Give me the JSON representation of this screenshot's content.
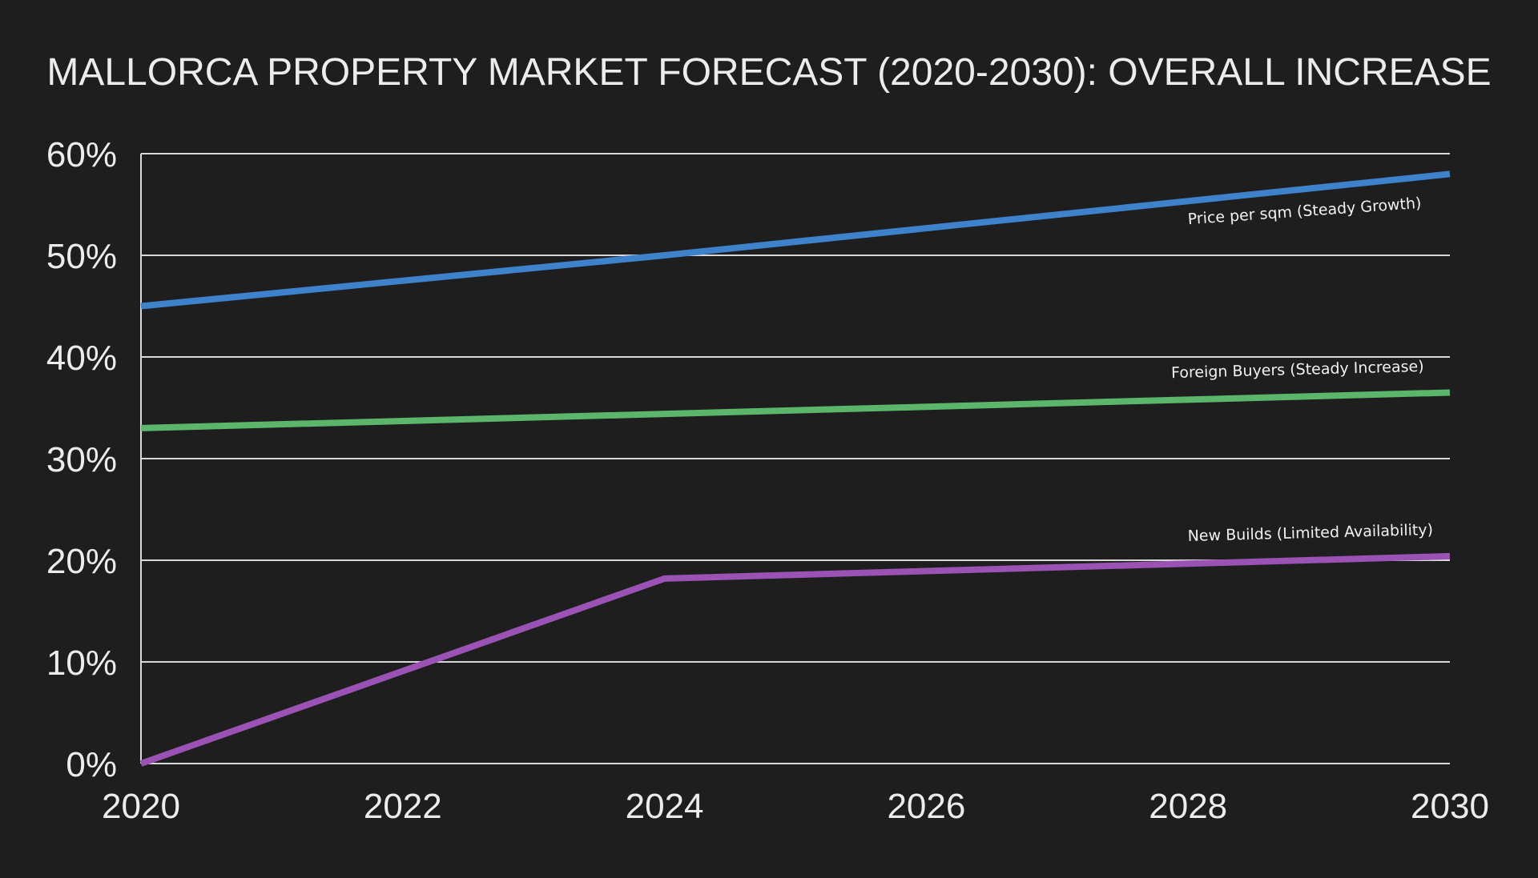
{
  "chart_data": {
    "type": "line",
    "title": "MALLORCA PROPERTY MARKET FORECAST (2020-2030): OVERALL INCREASE",
    "xlabel": "",
    "ylabel": "",
    "xlim": [
      2020,
      2030
    ],
    "ylim": [
      0,
      60
    ],
    "x_ticks": [
      "2020",
      "2022",
      "2024",
      "2026",
      "2028",
      "2030"
    ],
    "y_ticks": [
      "0%",
      "10%",
      "20%",
      "30%",
      "40%",
      "50%",
      "60%"
    ],
    "grid": true,
    "background": "#1e1e1e",
    "series": [
      {
        "name": "Price per sqm (Steady Growth)",
        "color": "#3f82cc",
        "x": [
          2020,
          2024,
          2030
        ],
        "y": [
          45,
          50,
          58
        ]
      },
      {
        "name": "Foreign Buyers (Steady Increase)",
        "color": "#5bb56a",
        "x": [
          2020,
          2030
        ],
        "y": [
          33,
          36.5
        ]
      },
      {
        "name": "New Builds (Limited Availability)",
        "color": "#9a52b5",
        "x": [
          2020,
          2024,
          2030
        ],
        "y": [
          0,
          18.2,
          20.4
        ]
      }
    ]
  }
}
